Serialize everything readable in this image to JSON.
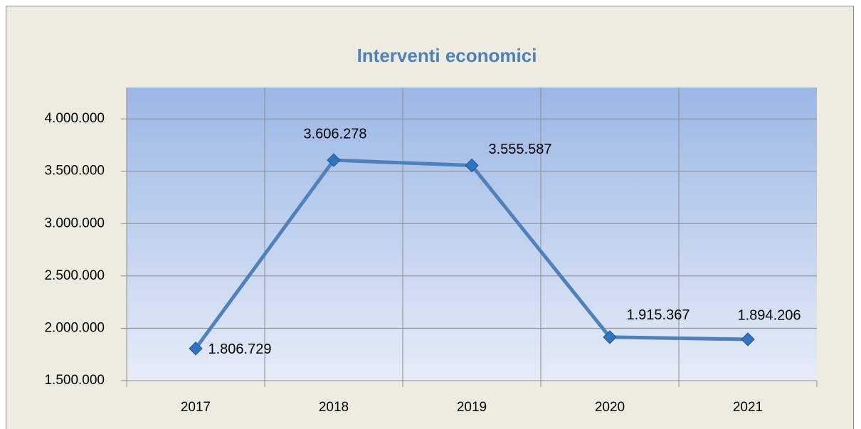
{
  "chart_data": {
    "type": "line",
    "title": "Interventi economici",
    "categories": [
      "2017",
      "2018",
      "2019",
      "2020",
      "2021"
    ],
    "series": [
      {
        "name": "Interventi economici",
        "color": "#4f81bd",
        "values": [
          1806729,
          3606278,
          3555587,
          1915367,
          1894206
        ],
        "value_labels": [
          "1.806.729",
          "3.606.278",
          "3.555.587",
          "1.915.367",
          "1.894.206"
        ]
      }
    ],
    "ylim": [
      1500000,
      4300000
    ],
    "yticks": [
      {
        "value": 1500000,
        "label": "1.500.000"
      },
      {
        "value": 2000000,
        "label": "2.000.000"
      },
      {
        "value": 2500000,
        "label": "2.500.000"
      },
      {
        "value": 3000000,
        "label": "3.000.000"
      },
      {
        "value": 3500000,
        "label": "3.500.000"
      },
      {
        "value": 4000000,
        "label": "4.000.000"
      }
    ],
    "grid": true
  }
}
